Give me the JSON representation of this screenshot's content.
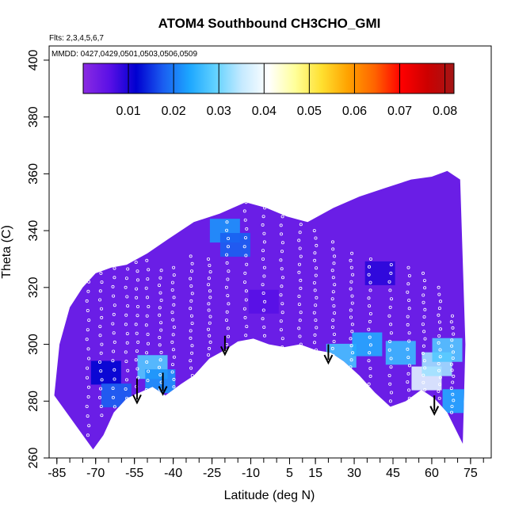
{
  "chart_data": {
    "type": "heatmap",
    "title": "ATOM4 Southbound CH3CHO_GMI",
    "flights_note": "Flts: 2,3,4,5,6,7",
    "dates_note": "MMDD: 0427,0429,0501,0503,0506,0509",
    "xlabel": "Latitude (deg N)",
    "ylabel": "Theta (C)",
    "xlim": [
      -88,
      83
    ],
    "ylim": [
      260,
      405
    ],
    "x_ticks": [
      -85,
      -70,
      -55,
      -40,
      -25,
      -10,
      5,
      15,
      30,
      45,
      60,
      75
    ],
    "x_tick_labels": [
      "-85",
      "-70",
      "-55",
      "-40",
      "-25",
      "-10",
      "5",
      "15",
      "30",
      "45",
      "60",
      "75"
    ],
    "y_ticks": [
      260,
      280,
      300,
      320,
      340,
      360,
      380,
      400
    ],
    "y_tick_labels": [
      "260",
      "280",
      "300",
      "320",
      "340",
      "360",
      "380",
      "400"
    ],
    "colorbar": {
      "min": 0.0,
      "max": 0.082,
      "ticks": [
        0.01,
        0.02,
        0.03,
        0.04,
        0.05,
        0.06,
        0.07,
        0.08
      ],
      "tick_labels": [
        "0.01",
        "0.02",
        "0.03",
        "0.04",
        "0.05",
        "0.06",
        "0.07",
        "0.08"
      ],
      "colors": [
        "#8a2be2",
        "#5a10e6",
        "#0000d0",
        "#1a5cf0",
        "#1ca6ff",
        "#62d2ff",
        "#c6eaff",
        "#ffffff",
        "#ffff9a",
        "#ffe030",
        "#ffa200",
        "#ff6400",
        "#ff0000",
        "#cc0000",
        "#a31616"
      ]
    },
    "surface_boundary": [
      [
        -71,
        263
      ],
      [
        -67,
        268
      ],
      [
        -63,
        276
      ],
      [
        -58,
        281
      ],
      [
        -53,
        283
      ],
      [
        -48,
        285
      ],
      [
        -43,
        282
      ],
      [
        -37,
        286
      ],
      [
        -32,
        289
      ],
      [
        -26,
        295
      ],
      [
        -20,
        298
      ],
      [
        -15,
        301
      ],
      [
        -9,
        302
      ],
      [
        -3,
        300
      ],
      [
        3,
        299
      ],
      [
        9,
        300
      ],
      [
        15,
        298
      ],
      [
        21,
        297
      ],
      [
        26,
        294
      ],
      [
        32,
        289
      ],
      [
        38,
        283
      ],
      [
        44,
        278
      ],
      [
        50,
        280
      ],
      [
        56,
        284
      ],
      [
        61,
        281
      ],
      [
        66,
        276
      ],
      [
        72,
        265
      ]
    ],
    "upper_boundary": [
      [
        -86,
        282
      ],
      [
        -84,
        300
      ],
      [
        -80,
        313
      ],
      [
        -75,
        320
      ],
      [
        -70,
        325
      ],
      [
        -64,
        327
      ],
      [
        -58,
        328
      ],
      [
        -50,
        332
      ],
      [
        -42,
        337
      ],
      [
        -32,
        343
      ],
      [
        -22,
        346
      ],
      [
        -12,
        350
      ],
      [
        -4,
        348
      ],
      [
        4,
        345
      ],
      [
        12,
        343
      ],
      [
        22,
        348
      ],
      [
        32,
        352
      ],
      [
        42,
        355
      ],
      [
        52,
        358
      ],
      [
        60,
        359
      ],
      [
        66,
        361
      ],
      [
        71,
        358
      ],
      [
        73,
        300
      ],
      [
        72,
        265
      ]
    ],
    "arrows_latitude": [
      -54,
      -44,
      -20,
      20,
      61
    ],
    "arrows_theta": [
      [
        288,
        280
      ],
      [
        290,
        283
      ],
      [
        303,
        297
      ],
      [
        300,
        294
      ],
      [
        282,
        276
      ]
    ],
    "field_patches": [
      {
        "lat": -66,
        "theta": 290,
        "value": 0.012
      },
      {
        "lat": -62,
        "theta": 282,
        "value": 0.018
      },
      {
        "lat": -48,
        "theta": 292,
        "value": 0.028
      },
      {
        "lat": -45,
        "theta": 287,
        "value": 0.022
      },
      {
        "lat": -20,
        "theta": 340,
        "value": 0.022
      },
      {
        "lat": -16,
        "theta": 335,
        "value": 0.018
      },
      {
        "lat": 25,
        "theta": 296,
        "value": 0.027
      },
      {
        "lat": 35,
        "theta": 300,
        "value": 0.024
      },
      {
        "lat": 48,
        "theta": 297,
        "value": 0.026
      },
      {
        "lat": 58,
        "theta": 288,
        "value": 0.038
      },
      {
        "lat": 62,
        "theta": 293,
        "value": 0.033
      },
      {
        "lat": 66,
        "theta": 298,
        "value": 0.028
      },
      {
        "lat": 70,
        "theta": 280,
        "value": 0.024
      },
      {
        "lat": -5,
        "theta": 315,
        "value": 0.006
      },
      {
        "lat": 40,
        "theta": 325,
        "value": 0.009
      }
    ],
    "flight_tracks": [
      {
        "lat": -73,
        "theta_from": 268,
        "theta_to": 322
      },
      {
        "lat": -68,
        "theta_from": 275,
        "theta_to": 325
      },
      {
        "lat": -63,
        "theta_from": 278,
        "theta_to": 330
      },
      {
        "lat": -58,
        "theta_from": 281,
        "theta_to": 333
      },
      {
        "lat": -54,
        "theta_from": 282,
        "theta_to": 332
      },
      {
        "lat": -50,
        "theta_from": 284,
        "theta_to": 336
      },
      {
        "lat": -45,
        "theta_from": 284,
        "theta_to": 326
      },
      {
        "lat": -40,
        "theta_from": 285,
        "theta_to": 327
      },
      {
        "lat": -33,
        "theta_from": 289,
        "theta_to": 331
      },
      {
        "lat": -26,
        "theta_from": 294,
        "theta_to": 330
      },
      {
        "lat": -19,
        "theta_from": 297,
        "theta_to": 343
      },
      {
        "lat": -12,
        "theta_from": 300,
        "theta_to": 350
      },
      {
        "lat": -5,
        "theta_from": 300,
        "theta_to": 348
      },
      {
        "lat": 2,
        "theta_from": 299,
        "theta_to": 348
      },
      {
        "lat": 9,
        "theta_from": 300,
        "theta_to": 345
      },
      {
        "lat": 15,
        "theta_from": 298,
        "theta_to": 340
      },
      {
        "lat": 22,
        "theta_from": 296,
        "theta_to": 336
      },
      {
        "lat": 29,
        "theta_from": 292,
        "theta_to": 332
      },
      {
        "lat": 36,
        "theta_from": 286,
        "theta_to": 330
      },
      {
        "lat": 44,
        "theta_from": 280,
        "theta_to": 328
      },
      {
        "lat": 51,
        "theta_from": 281,
        "theta_to": 327
      },
      {
        "lat": 57,
        "theta_from": 284,
        "theta_to": 325
      },
      {
        "lat": 63,
        "theta_from": 281,
        "theta_to": 320
      },
      {
        "lat": 68,
        "theta_from": 276,
        "theta_to": 310
      }
    ]
  }
}
